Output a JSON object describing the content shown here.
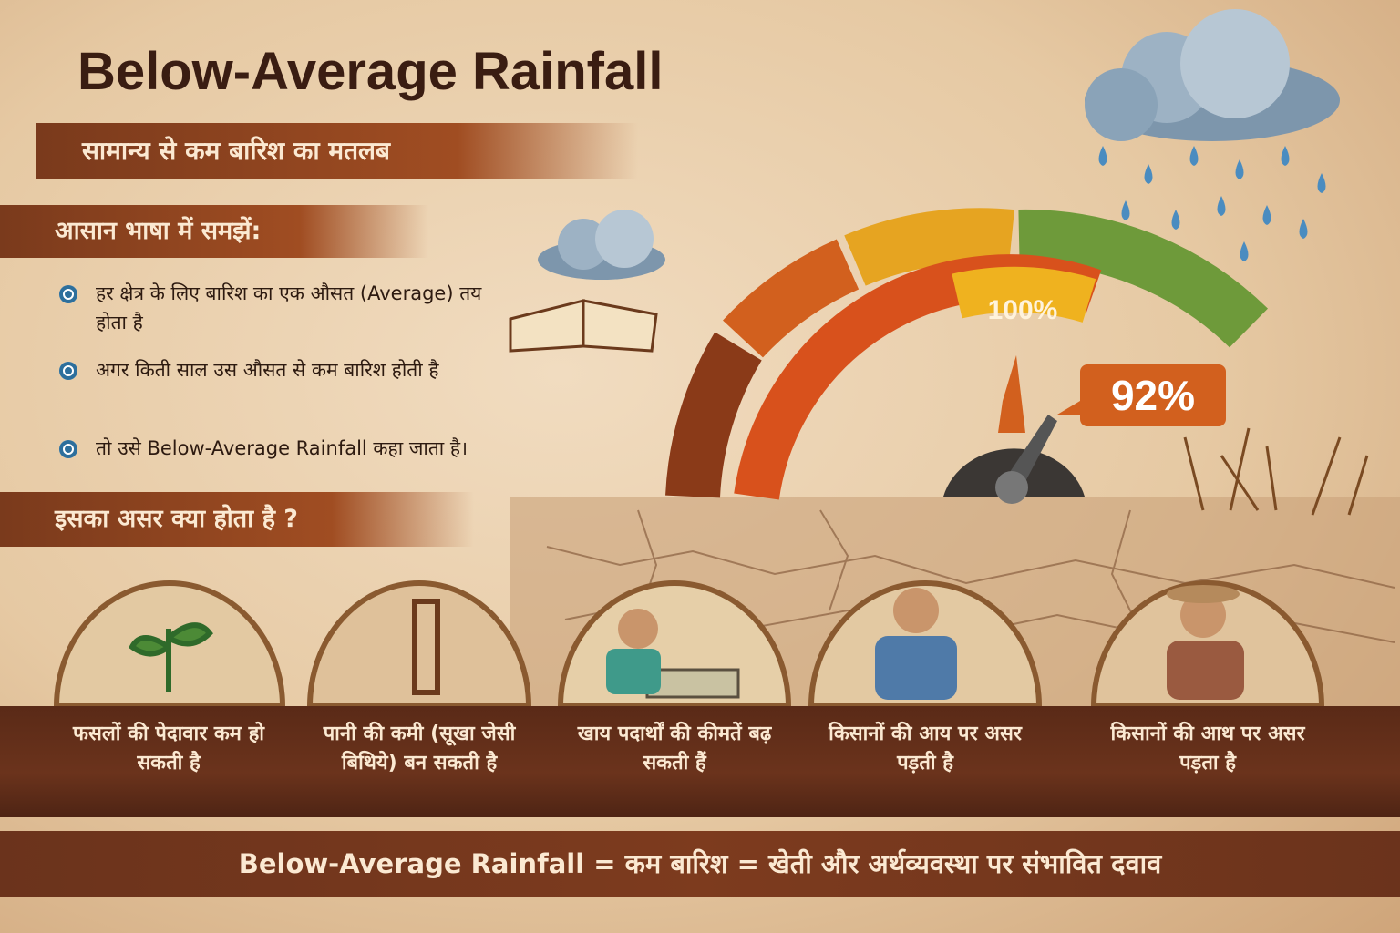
{
  "header": {
    "title": "Below-Average Rainfall",
    "subtitle": "सामान्य से कम बारिश का मतलब"
  },
  "explain": {
    "heading": "आसान भाषा में समझें:",
    "points": [
      "हर क्षेत्र के लिए बारिश का एक औसत (Average) तय होता है",
      "अगर किती साल उस औसत से कम बारिश होती है",
      "तो उसे Below-Average Rainfall कहा जाता है।"
    ]
  },
  "gauge": {
    "reference_label": "100%",
    "value_label": "92%"
  },
  "impact": {
    "heading": "इसका असर क्या होता है ?",
    "cards": [
      "फसलों की पेदावार कम हो सकती है",
      "पानी की कमी (सूखा जेसी बिथिये) बन सकती है",
      "खाय पदार्थों की कीमतें बढ़ सकती हैं",
      "किसानों की आय पर असर पड़ती है",
      "किसानों की आथ पर असर पड़ता है"
    ]
  },
  "footer": {
    "text": "Below-Average Rainfall = कम बारिश = खेती और अर्थव्यवस्था पर संभावित दवाव"
  }
}
